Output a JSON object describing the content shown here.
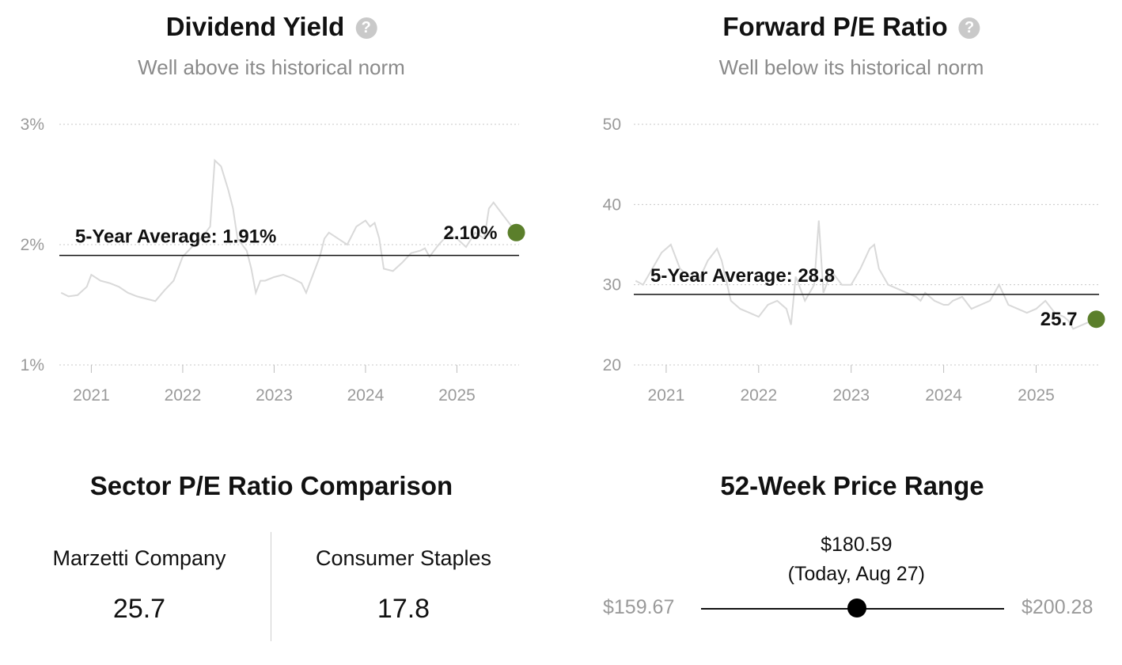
{
  "dividend": {
    "title": "Dividend Yield",
    "subtitle": "Well above its historical norm",
    "avg_label": "5-Year Average: 1.91%",
    "current_label": "2.10%"
  },
  "pe": {
    "title": "Forward P/E Ratio",
    "subtitle": "Well below its historical norm",
    "avg_label": "5-Year Average: 28.8",
    "current_label": "25.7"
  },
  "sector": {
    "title": "Sector P/E Ratio Comparison",
    "company_name": "Marzetti Company",
    "company_value": "25.7",
    "sector_name": "Consumer Staples",
    "sector_value": "17.8"
  },
  "price_range": {
    "title": "52-Week Price Range",
    "current": "$180.59",
    "current_note": "(Today, Aug 27)",
    "low": "$159.67",
    "high": "$200.28",
    "low_value": 159.67,
    "high_value": 200.28,
    "current_value": 180.59
  },
  "colors": {
    "accent": "#5b7f2b",
    "series": "#d9d9d9",
    "grid": "#c8c8c8",
    "avg_line": "#111111"
  },
  "icons": {
    "help": "question-circle-icon"
  },
  "chart_data": [
    {
      "type": "line",
      "title": "Dividend Yield",
      "subtitle": "Well above its historical norm",
      "ylim": [
        1,
        3
      ],
      "yticks": [
        1,
        2,
        3
      ],
      "ytick_labels": [
        "1%",
        "2%",
        "3%"
      ],
      "xlim": [
        2020.65,
        2025.68
      ],
      "xticks": [
        2021,
        2022,
        2023,
        2024,
        2025
      ],
      "xtick_labels": [
        "2021",
        "2022",
        "2023",
        "2024",
        "2025"
      ],
      "grid": true,
      "average": 1.91,
      "current": {
        "x": 2025.65,
        "y": 2.1
      },
      "series": [
        {
          "x": [
            2020.67,
            2020.75,
            2020.85,
            2020.95,
            2021.0,
            2021.1,
            2021.2,
            2021.3,
            2021.4,
            2021.5,
            2021.6,
            2021.7,
            2021.8,
            2021.9,
            2022.0,
            2022.1,
            2022.2,
            2022.3,
            2022.35,
            2022.42,
            2022.5,
            2022.55,
            2022.6,
            2022.7,
            2022.75,
            2022.8,
            2022.85,
            2022.9,
            2023.0,
            2023.1,
            2023.2,
            2023.3,
            2023.35,
            2023.4,
            2023.45,
            2023.5,
            2023.55,
            2023.6,
            2023.7,
            2023.8,
            2023.9,
            2024.0,
            2024.05,
            2024.1,
            2024.15,
            2024.2,
            2024.3,
            2024.4,
            2024.5,
            2024.6,
            2024.65,
            2024.7,
            2024.8,
            2024.9,
            2025.0,
            2025.1,
            2025.2,
            2025.3,
            2025.35,
            2025.4,
            2025.5,
            2025.6,
            2025.65
          ],
          "y": [
            1.6,
            1.57,
            1.58,
            1.65,
            1.75,
            1.7,
            1.68,
            1.65,
            1.6,
            1.57,
            1.55,
            1.53,
            1.62,
            1.7,
            1.9,
            1.98,
            2.05,
            2.15,
            2.7,
            2.65,
            2.45,
            2.3,
            2.05,
            1.95,
            1.8,
            1.6,
            1.7,
            1.7,
            1.73,
            1.75,
            1.72,
            1.68,
            1.6,
            1.7,
            1.8,
            1.9,
            2.05,
            2.1,
            2.05,
            2.0,
            2.15,
            2.2,
            2.15,
            2.18,
            2.05,
            1.8,
            1.78,
            1.85,
            1.93,
            1.95,
            1.97,
            1.9,
            2.0,
            2.08,
            2.05,
            1.98,
            2.1,
            2.05,
            2.3,
            2.35,
            2.25,
            2.15,
            2.1
          ]
        }
      ]
    },
    {
      "type": "line",
      "title": "Forward P/E Ratio",
      "subtitle": "Well below its historical norm",
      "ylim": [
        20,
        50
      ],
      "yticks": [
        20,
        30,
        40,
        50
      ],
      "ytick_labels": [
        "20",
        "30",
        "40",
        "50"
      ],
      "xlim": [
        2020.65,
        2025.68
      ],
      "xticks": [
        2021,
        2022,
        2023,
        2024,
        2025
      ],
      "xtick_labels": [
        "2021",
        "2022",
        "2023",
        "2024",
        "2025"
      ],
      "grid": true,
      "average": 28.8,
      "current": {
        "x": 2025.65,
        "y": 25.7
      },
      "series": [
        {
          "x": [
            2020.67,
            2020.75,
            2020.85,
            2020.95,
            2021.05,
            2021.15,
            2021.25,
            2021.35,
            2021.45,
            2021.55,
            2021.6,
            2021.7,
            2021.8,
            2021.9,
            2022.0,
            2022.1,
            2022.2,
            2022.3,
            2022.35,
            2022.4,
            2022.5,
            2022.6,
            2022.65,
            2022.7,
            2022.75,
            2022.8,
            2022.9,
            2023.0,
            2023.1,
            2023.2,
            2023.25,
            2023.3,
            2023.4,
            2023.5,
            2023.6,
            2023.7,
            2023.75,
            2023.8,
            2023.9,
            2024.0,
            2024.05,
            2024.1,
            2024.2,
            2024.3,
            2024.4,
            2024.5,
            2024.6,
            2024.7,
            2024.8,
            2024.9,
            2025.0,
            2025.1,
            2025.2,
            2025.3,
            2025.35,
            2025.4,
            2025.5,
            2025.6,
            2025.65
          ],
          "y": [
            30.5,
            30.0,
            32.0,
            34.0,
            35.0,
            32.0,
            31.0,
            30.5,
            33.0,
            34.5,
            33.0,
            28.0,
            27.0,
            26.5,
            26.0,
            27.5,
            28.0,
            27.0,
            25.0,
            31.0,
            28.0,
            30.0,
            38.0,
            29.0,
            30.5,
            31.5,
            30.0,
            30.0,
            32.0,
            34.5,
            35.0,
            32.0,
            30.0,
            29.5,
            29.0,
            28.5,
            28.0,
            29.0,
            28.0,
            27.5,
            27.5,
            28.0,
            28.5,
            27.0,
            27.5,
            28.0,
            30.0,
            27.5,
            27.0,
            26.5,
            27.0,
            28.0,
            26.5,
            26.0,
            25.5,
            24.5,
            25.0,
            25.5,
            25.7
          ]
        }
      ]
    }
  ]
}
